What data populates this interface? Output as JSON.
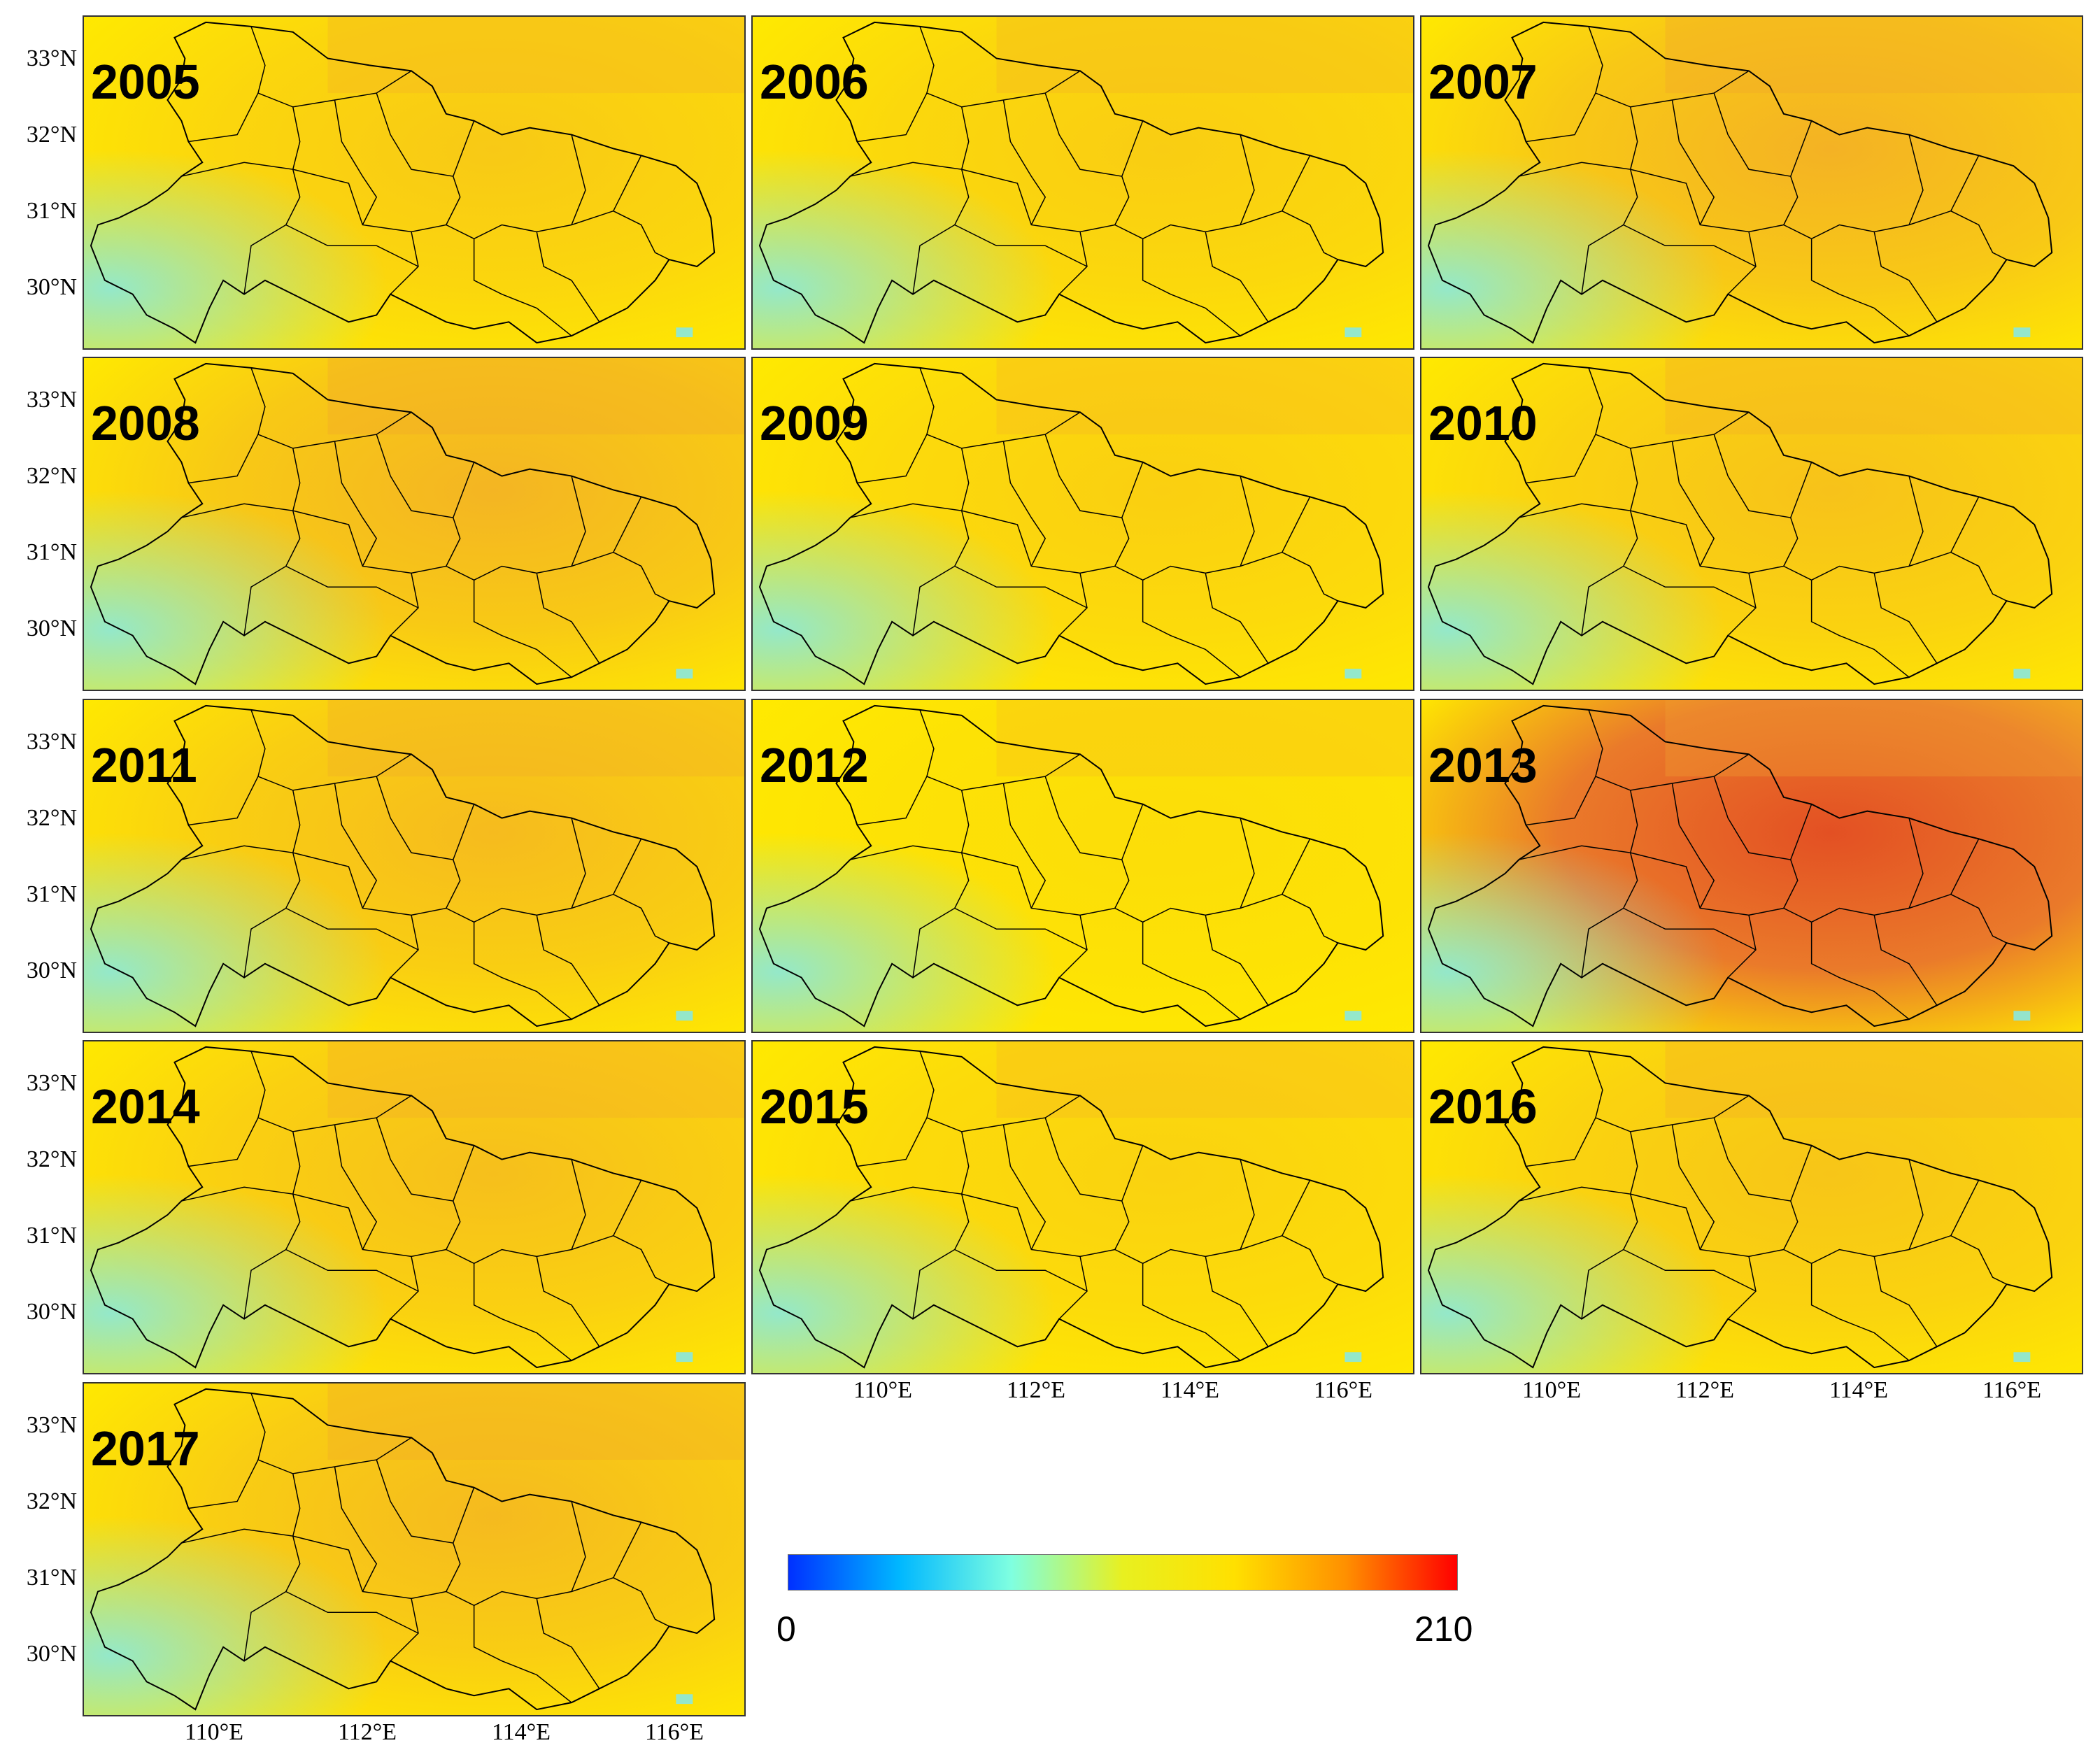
{
  "panels": [
    {
      "year": "2005",
      "intensity": 0.25
    },
    {
      "year": "2006",
      "intensity": 0.22
    },
    {
      "year": "2007",
      "intensity": 0.42
    },
    {
      "year": "2008",
      "intensity": 0.4
    },
    {
      "year": "2009",
      "intensity": 0.2
    },
    {
      "year": "2010",
      "intensity": 0.3
    },
    {
      "year": "2011",
      "intensity": 0.35
    },
    {
      "year": "2012",
      "intensity": 0.1
    },
    {
      "year": "2013",
      "intensity": 0.95
    },
    {
      "year": "2014",
      "intensity": 0.32
    },
    {
      "year": "2015",
      "intensity": 0.18
    },
    {
      "year": "2016",
      "intensity": 0.28
    },
    {
      "year": "2017",
      "intensity": 0.36
    }
  ],
  "lat_labels": [
    "33°N",
    "32°N",
    "31°N",
    "30°N"
  ],
  "lon_labels": [
    "110°E",
    "112°E",
    "114°E",
    "116°E"
  ],
  "colorbar": {
    "min_label": "0",
    "max_label": "210",
    "colors": [
      "#0030ff",
      "#00b8ff",
      "#7fffe0",
      "#e8f020",
      "#ffe000",
      "#ff9000",
      "#ff0000"
    ]
  },
  "palette": {
    "cool": "#88e8e0",
    "mid": "#ffea00",
    "warm": "#f0a030",
    "hot": "#e04020",
    "border": "#000000"
  }
}
